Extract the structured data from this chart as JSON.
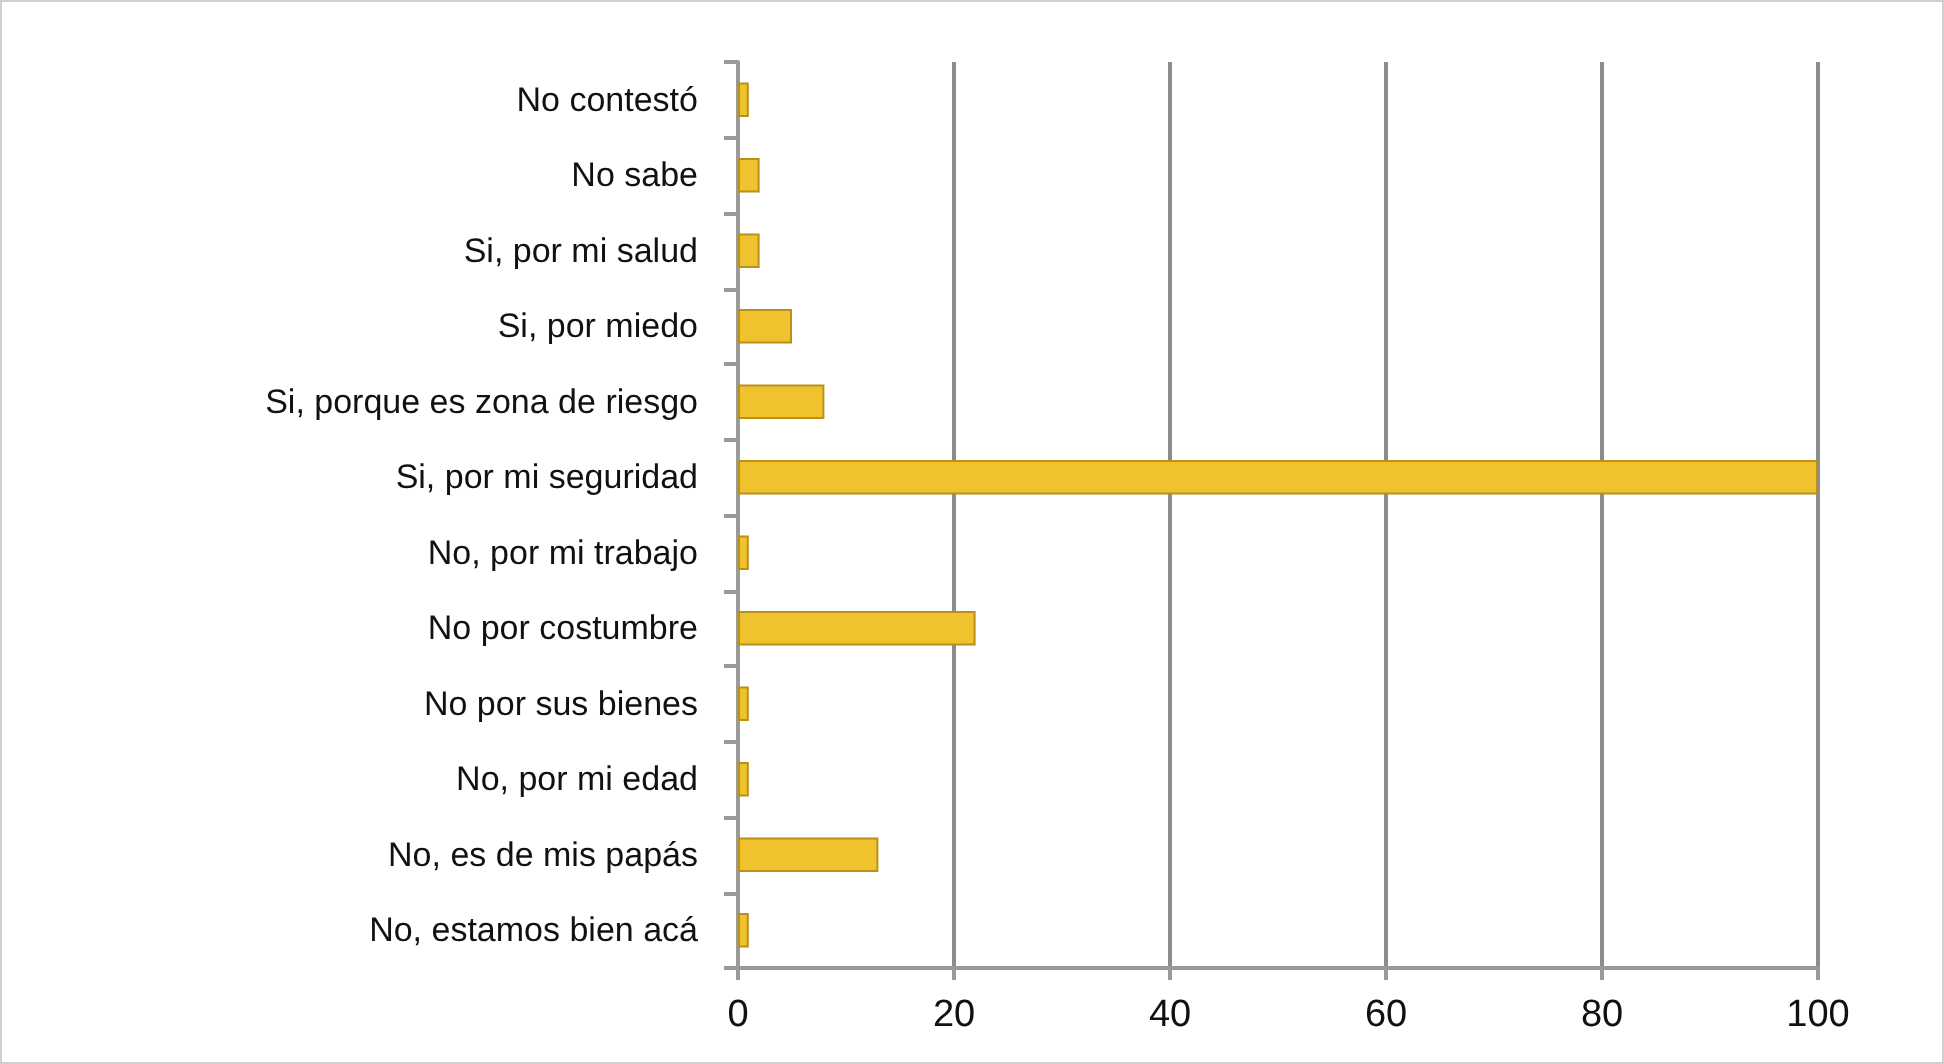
{
  "chart_data": {
    "type": "bar",
    "orientation": "horizontal",
    "categories": [
      "No contestó",
      "No sabe",
      "Si, por mi salud",
      "Si, por miedo",
      "Si, porque es zona de riesgo",
      "Si, por mi seguridad",
      "No, por mi trabajo",
      "No por costumbre",
      "No por sus bienes",
      "No, por mi edad",
      "No, es de mis papás",
      "No, estamos bien acá"
    ],
    "values": [
      1,
      2,
      2,
      5,
      8,
      100,
      1,
      22,
      1,
      1,
      13,
      1
    ],
    "color": "#f0c22e",
    "xlim": [
      0,
      100
    ],
    "xticks": [
      0,
      20,
      40,
      60,
      80,
      100
    ],
    "grid": "x"
  }
}
